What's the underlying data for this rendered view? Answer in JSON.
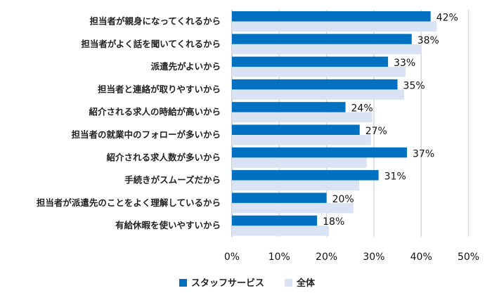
{
  "chart_data": {
    "type": "bar",
    "orientation": "horizontal",
    "title": "",
    "xlabel": "",
    "ylabel": "",
    "xlim": [
      0,
      50
    ],
    "x_ticks": [
      "0%",
      "10%",
      "20%",
      "30%",
      "40%",
      "50%"
    ],
    "grid": true,
    "legend_position": "bottom",
    "categories": [
      "担当者が親身になってくれるから",
      "担当者がよく話を聞いてくれるから",
      "派遣先がよいから",
      "担当者と連絡が取りやすいから",
      "紹介される求人の時給が高いから",
      "担当者の就業中のフォローが多いから",
      "紹介される求人数が多いから",
      "手続きがスムーズだから",
      "担当者が派遣先のことをよく理解しているから",
      "有給休暇を使いやすいから"
    ],
    "series": [
      {
        "name": "スタッフサービス",
        "color": "#0070c0",
        "values": [
          42,
          38,
          33,
          35,
          24,
          27,
          37,
          31,
          20,
          18
        ],
        "labels": [
          "42%",
          "38%",
          "33%",
          "35%",
          "24%",
          "27%",
          "37%",
          "31%",
          "20%",
          "18%"
        ]
      },
      {
        "name": "全体",
        "color": "#dae3f3",
        "values": [
          43.3,
          40.1,
          36.7,
          36.4,
          29.7,
          29.4,
          28.5,
          26.9,
          25.7,
          20.5
        ]
      }
    ]
  }
}
